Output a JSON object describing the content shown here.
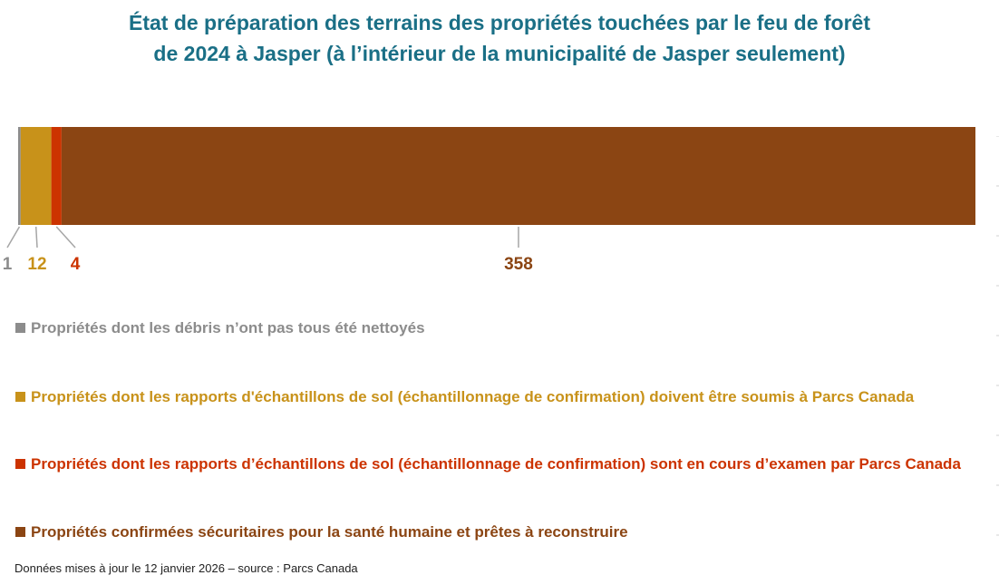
{
  "title_line1": "État de préparation des terrains des propriétés touchées par le feu de forêt",
  "title_line2": "de 2024 à Jasper (à l’intérieur de la municipalité de Jasper seulement)",
  "colors": {
    "title": "#1a6f86",
    "grey": "#8c8c8c",
    "gold": "#c8921a",
    "red": "#cc3300",
    "brown": "#8b4513",
    "leader": "#a6a6a6"
  },
  "chart_data": {
    "type": "bar",
    "orientation": "horizontal-stacked-100",
    "series": [
      {
        "name": "Propriétés dont les débris n’ont pas tous été nettoyés",
        "value": 1,
        "label": "1",
        "color": "#8c8c8c"
      },
      {
        "name": "Propriétés dont les rapports d'échantillons de sol (échantillonnage de confirmation) doivent être soumis à Parcs Canada",
        "value": 12,
        "label": "12",
        "color": "#c8921a"
      },
      {
        "name": "Propriétés dont les rapports d’échantillons de sol (échantillonnage de confirmation) sont en cours d’examen par Parcs Canada",
        "value": 4,
        "label": "4",
        "color": "#cc3300"
      },
      {
        "name": "Propriétés confirmées sécuritaires pour la santé humaine et prêtes à reconstruire",
        "value": 358,
        "label": "358",
        "color": "#8b4513"
      }
    ],
    "legend_position": "bottom",
    "grid": false
  },
  "legend": [
    {
      "label": "Propriétés dont les débris n’ont pas tous été nettoyés",
      "color": "#8c8c8c"
    },
    {
      "label": "Propriétés dont les rapports d'échantillons de sol (échantillonnage de confirmation) doivent être soumis à Parcs Canada",
      "color": "#c8921a"
    },
    {
      "label": "Propriétés dont les rapports d’échantillons de sol (échantillonnage de confirmation) sont en cours d’examen par Parcs Canada",
      "color": "#cc3300"
    },
    {
      "label": "Propriétés confirmées sécuritaires pour la santé humaine et prêtes à reconstruire",
      "color": "#8b4513"
    }
  ],
  "footnote": "Données mises à jour le 12 janvier 2026 – source : Parcs Canada"
}
